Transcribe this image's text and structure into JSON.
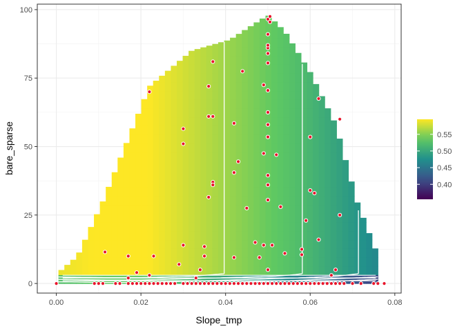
{
  "chart_data": {
    "type": "heatmap",
    "xlabel": "Slope_tmp",
    "ylabel": "bare_sparse",
    "xlim": [
      -0.0045,
      0.0815
    ],
    "ylim": [
      -3.5,
      102
    ],
    "x_ticks": [
      0.0,
      0.02,
      0.04,
      0.06,
      0.08
    ],
    "x_tick_labels": [
      "0.00",
      "0.02",
      "0.04",
      "0.06",
      "0.08"
    ],
    "y_ticks": [
      0,
      25,
      50,
      75,
      100
    ],
    "y_tick_labels": [
      "0",
      "25",
      "50",
      "75",
      "100"
    ],
    "grid": true,
    "legend": {
      "placement": "right",
      "range": [
        0.355,
        0.595
      ],
      "ticks": [
        0.4,
        0.45,
        0.5,
        0.55
      ],
      "tick_labels": [
        "0.40",
        "0.45",
        "0.50",
        "0.55"
      ],
      "colors": [
        "#440154",
        "#3b528b",
        "#21908c",
        "#5dc863",
        "#fde725"
      ]
    },
    "surface_envelope": {
      "x": [
        0.0005,
        0.005,
        0.011,
        0.022,
        0.032,
        0.041,
        0.046,
        0.05,
        0.054,
        0.06,
        0.066,
        0.071,
        0.076
      ],
      "y_max": [
        4,
        10,
        30,
        72,
        85,
        89,
        94,
        98,
        92,
        77,
        58,
        30,
        10
      ]
    },
    "contour_levels": [
      0.4,
      0.44,
      0.48,
      0.52,
      0.56
    ],
    "points": [
      [
        0.0,
        0
      ],
      [
        0.009,
        0
      ],
      [
        0.01,
        0
      ],
      [
        0.011,
        0
      ],
      [
        0.014,
        0
      ],
      [
        0.015,
        0
      ],
      [
        0.017,
        0
      ],
      [
        0.018,
        0
      ],
      [
        0.019,
        0
      ],
      [
        0.02,
        0
      ],
      [
        0.021,
        0
      ],
      [
        0.022,
        0
      ],
      [
        0.023,
        0
      ],
      [
        0.024,
        0
      ],
      [
        0.025,
        0
      ],
      [
        0.026,
        0
      ],
      [
        0.027,
        0
      ],
      [
        0.028,
        0
      ],
      [
        0.03,
        0
      ],
      [
        0.031,
        0
      ],
      [
        0.032,
        0
      ],
      [
        0.033,
        0
      ],
      [
        0.034,
        0
      ],
      [
        0.035,
        0
      ],
      [
        0.036,
        0
      ],
      [
        0.037,
        0
      ],
      [
        0.038,
        0
      ],
      [
        0.039,
        0
      ],
      [
        0.04,
        0
      ],
      [
        0.041,
        0
      ],
      [
        0.042,
        0
      ],
      [
        0.043,
        0
      ],
      [
        0.044,
        0
      ],
      [
        0.045,
        0
      ],
      [
        0.046,
        0
      ],
      [
        0.047,
        0
      ],
      [
        0.048,
        0
      ],
      [
        0.049,
        0
      ],
      [
        0.05,
        0
      ],
      [
        0.051,
        0
      ],
      [
        0.052,
        0
      ],
      [
        0.053,
        0
      ],
      [
        0.054,
        0
      ],
      [
        0.055,
        0
      ],
      [
        0.056,
        0
      ],
      [
        0.057,
        0
      ],
      [
        0.058,
        0
      ],
      [
        0.059,
        0
      ],
      [
        0.06,
        0
      ],
      [
        0.061,
        0
      ],
      [
        0.062,
        0
      ],
      [
        0.063,
        0
      ],
      [
        0.064,
        0
      ],
      [
        0.065,
        0
      ],
      [
        0.066,
        0
      ],
      [
        0.067,
        0
      ],
      [
        0.068,
        0
      ],
      [
        0.07,
        0
      ],
      [
        0.072,
        0
      ],
      [
        0.075,
        0
      ],
      [
        0.076,
        0
      ],
      [
        0.0775,
        0
      ],
      [
        0.017,
        2
      ],
      [
        0.019,
        4
      ],
      [
        0.022,
        3
      ],
      [
        0.033,
        2
      ],
      [
        0.065,
        3
      ],
      [
        0.066,
        5
      ],
      [
        0.05,
        5
      ],
      [
        0.0115,
        11.5
      ],
      [
        0.017,
        10
      ],
      [
        0.023,
        10
      ],
      [
        0.029,
        7
      ],
      [
        0.03,
        14
      ],
      [
        0.035,
        13.5
      ],
      [
        0.035,
        10
      ],
      [
        0.034,
        5
      ],
      [
        0.042,
        9.5
      ],
      [
        0.047,
        15
      ],
      [
        0.048,
        9.5
      ],
      [
        0.049,
        14
      ],
      [
        0.051,
        14
      ],
      [
        0.054,
        11
      ],
      [
        0.058,
        12.5
      ],
      [
        0.058,
        10.5
      ],
      [
        0.062,
        16
      ],
      [
        0.067,
        25
      ],
      [
        0.036,
        31.5
      ],
      [
        0.037,
        37
      ],
      [
        0.037,
        36
      ],
      [
        0.045,
        27.5
      ],
      [
        0.05,
        36
      ],
      [
        0.05,
        30.5
      ],
      [
        0.053,
        28
      ],
      [
        0.059,
        23
      ],
      [
        0.06,
        34
      ],
      [
        0.061,
        33
      ],
      [
        0.042,
        40.5
      ],
      [
        0.05,
        39.5
      ],
      [
        0.043,
        44.5
      ],
      [
        0.049,
        47.5
      ],
      [
        0.052,
        47
      ],
      [
        0.06,
        53.5
      ],
      [
        0.03,
        56.5
      ],
      [
        0.03,
        51
      ],
      [
        0.036,
        61
      ],
      [
        0.037,
        61
      ],
      [
        0.042,
        58.5
      ],
      [
        0.05,
        53.5
      ],
      [
        0.05,
        58
      ],
      [
        0.05,
        62.5
      ],
      [
        0.022,
        70
      ],
      [
        0.036,
        72
      ],
      [
        0.044,
        77.5
      ],
      [
        0.049,
        72.5
      ],
      [
        0.05,
        70.5
      ],
      [
        0.062,
        67.5
      ],
      [
        0.067,
        60
      ],
      [
        0.037,
        81
      ],
      [
        0.05,
        80.5
      ],
      [
        0.05,
        84
      ],
      [
        0.05,
        86
      ],
      [
        0.05,
        87
      ],
      [
        0.05,
        91
      ],
      [
        0.05,
        96.5
      ],
      [
        0.0505,
        97.5
      ],
      [
        0.0505,
        95.5
      ]
    ]
  }
}
